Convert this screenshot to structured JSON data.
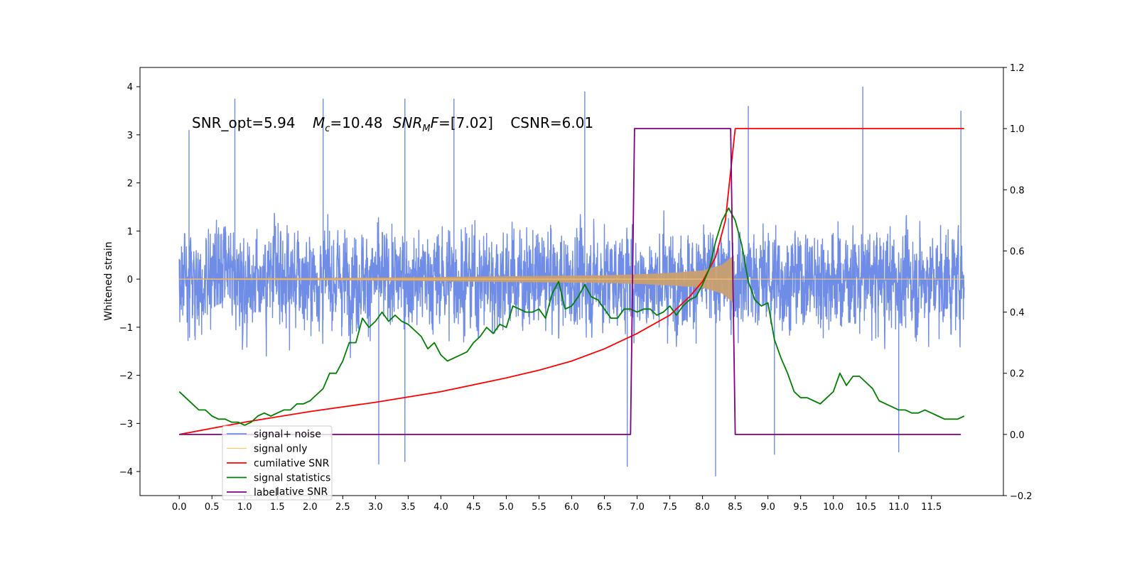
{
  "chart_data": {
    "type": "line",
    "title": "",
    "xlabel": "",
    "ylabel": "Whitened strain",
    "xlim": [
      -0.6,
      12.6
    ],
    "ylim": [
      -4.5,
      4.4
    ],
    "ylim_right": [
      -0.2,
      1.2
    ],
    "xticks": [
      0.0,
      0.5,
      1.0,
      1.5,
      2.0,
      2.5,
      3.0,
      3.5,
      4.0,
      4.5,
      5.0,
      5.5,
      6.0,
      6.5,
      7.0,
      7.5,
      8.0,
      8.5,
      9.0,
      9.5,
      10.0,
      10.5,
      11.0,
      11.5
    ],
    "xtick_labels": [
      "0.0",
      "0.5",
      "1.0",
      "1.5",
      "2.0",
      "2.5",
      "3.0",
      "3.5",
      "4.0",
      "4.5",
      "5.0",
      "5.5",
      "6.0",
      "6.5",
      "7.0",
      "7.5",
      "8.0",
      "8.5",
      "9.0",
      "9.5",
      "10.0",
      "10.5",
      "11.0",
      "11.5"
    ],
    "yticks_left": [
      -4,
      -3,
      -2,
      -1,
      0,
      1,
      2,
      3,
      4
    ],
    "yticks_left_labels": [
      "−4",
      "−3",
      "−2",
      "−1",
      "0",
      "1",
      "2",
      "3",
      "4"
    ],
    "yticks_right": [
      -0.2,
      0.0,
      0.2,
      0.4,
      0.6,
      0.8,
      1.0,
      1.2
    ],
    "yticks_right_labels": [
      "−0.2",
      "0.0",
      "0.2",
      "0.4",
      "0.6",
      "0.8",
      "1.0",
      "1.2"
    ],
    "annotation": {
      "snr_opt": "SNR_opt=5.94",
      "mc_sym": "M",
      "mc_sub": "c",
      "mc_val": "=10.48",
      "snrmf_sym": "SNR",
      "snrmf_sub": "M",
      "snrmf_f": "F",
      "snrmf_val": "=[7.02]",
      "csnr": "CSNR=6.01"
    },
    "legend": {
      "position": "lower-left",
      "entries": [
        {
          "label": "signal+ noise",
          "color": "#6f8ce6"
        },
        {
          "label": "signal only",
          "color": "#ffc86e"
        },
        {
          "label": "cumilative SNR",
          "color": "#ff0000"
        },
        {
          "label": "signal statistics",
          "color": "#008000"
        },
        {
          "label": "label",
          "color": "#800080"
        }
      ],
      "ghost_text": "lative SNR"
    },
    "series": [
      {
        "name": "signal+ noise",
        "axis": "left",
        "color": "#6f8ce6",
        "x_range": [
          0.0,
          12.0
        ],
        "typical_amplitude": 1.9,
        "peak_values": [
          {
            "x": 0.15,
            "y": 3.1
          },
          {
            "x": 0.85,
            "y": 3.75
          },
          {
            "x": 2.2,
            "y": 3.75
          },
          {
            "x": 3.45,
            "y": 3.75
          },
          {
            "x": 4.2,
            "y": 3.75
          },
          {
            "x": 6.2,
            "y": 3.9
          },
          {
            "x": 8.7,
            "y": 3.6
          },
          {
            "x": 10.45,
            "y": 4.0
          },
          {
            "x": 11.95,
            "y": 3.5
          },
          {
            "x": 3.05,
            "y": -3.85
          },
          {
            "x": 3.45,
            "y": -3.8
          },
          {
            "x": 6.85,
            "y": -3.9
          },
          {
            "x": 8.2,
            "y": -4.1
          },
          {
            "x": 9.1,
            "y": -3.65
          },
          {
            "x": 11.0,
            "y": -3.6
          }
        ]
      },
      {
        "name": "signal only",
        "axis": "left",
        "color": "#ffc86e",
        "envelope": [
          {
            "x": 0.0,
            "y": 0.01
          },
          {
            "x": 3.0,
            "y": 0.03
          },
          {
            "x": 5.0,
            "y": 0.06
          },
          {
            "x": 6.5,
            "y": 0.08
          },
          {
            "x": 7.0,
            "y": 0.1
          },
          {
            "x": 7.5,
            "y": 0.13
          },
          {
            "x": 8.0,
            "y": 0.18
          },
          {
            "x": 8.3,
            "y": 0.3
          },
          {
            "x": 8.48,
            "y": 0.5
          },
          {
            "x": 8.5,
            "y": 0.0
          },
          {
            "x": 12.0,
            "y": 0.0
          }
        ]
      },
      {
        "name": "cumilative SNR",
        "axis": "right",
        "color": "#ff0000",
        "x": [
          0.0,
          1.0,
          2.0,
          3.0,
          4.0,
          5.0,
          5.5,
          6.0,
          6.5,
          7.0,
          7.5,
          7.8,
          8.0,
          8.2,
          8.35,
          8.45,
          8.5,
          9.0,
          12.0
        ],
        "y": [
          0.0,
          0.04,
          0.075,
          0.105,
          0.14,
          0.185,
          0.21,
          0.24,
          0.28,
          0.33,
          0.39,
          0.45,
          0.5,
          0.58,
          0.7,
          0.9,
          1.0,
          1.0,
          1.0
        ]
      },
      {
        "name": "signal statistics",
        "axis": "right",
        "color": "#008000",
        "x": [
          0.0,
          0.1,
          0.2,
          0.3,
          0.4,
          0.5,
          0.6,
          0.7,
          0.8,
          0.9,
          1.0,
          1.1,
          1.2,
          1.3,
          1.4,
          1.5,
          1.6,
          1.7,
          1.8,
          1.9,
          2.0,
          2.1,
          2.2,
          2.3,
          2.4,
          2.5,
          2.6,
          2.7,
          2.8,
          2.9,
          3.0,
          3.1,
          3.2,
          3.3,
          3.4,
          3.5,
          3.6,
          3.7,
          3.8,
          3.9,
          4.0,
          4.1,
          4.2,
          4.3,
          4.4,
          4.5,
          4.6,
          4.7,
          4.8,
          4.9,
          5.0,
          5.1,
          5.2,
          5.3,
          5.4,
          5.5,
          5.6,
          5.7,
          5.8,
          5.9,
          6.0,
          6.1,
          6.2,
          6.3,
          6.4,
          6.5,
          6.6,
          6.7,
          6.8,
          6.9,
          7.0,
          7.1,
          7.2,
          7.3,
          7.4,
          7.5,
          7.6,
          7.7,
          7.8,
          7.9,
          8.0,
          8.1,
          8.2,
          8.3,
          8.4,
          8.5,
          8.6,
          8.7,
          8.8,
          8.9,
          9.0,
          9.1,
          9.2,
          9.3,
          9.4,
          9.5,
          9.6,
          9.7,
          9.8,
          9.9,
          10.0,
          10.1,
          10.2,
          10.3,
          10.4,
          10.5,
          10.6,
          10.7,
          10.8,
          10.9,
          11.0,
          11.1,
          11.2,
          11.3,
          11.4,
          11.5,
          11.6,
          11.7,
          11.8,
          11.9,
          12.0
        ],
        "y": [
          0.14,
          0.12,
          0.1,
          0.08,
          0.08,
          0.06,
          0.05,
          0.05,
          0.04,
          0.04,
          0.03,
          0.04,
          0.06,
          0.07,
          0.06,
          0.07,
          0.08,
          0.08,
          0.1,
          0.1,
          0.11,
          0.13,
          0.15,
          0.2,
          0.2,
          0.24,
          0.3,
          0.3,
          0.38,
          0.35,
          0.37,
          0.4,
          0.37,
          0.39,
          0.37,
          0.36,
          0.34,
          0.32,
          0.28,
          0.3,
          0.26,
          0.24,
          0.25,
          0.26,
          0.27,
          0.3,
          0.32,
          0.35,
          0.33,
          0.36,
          0.35,
          0.42,
          0.41,
          0.4,
          0.4,
          0.41,
          0.38,
          0.46,
          0.5,
          0.41,
          0.42,
          0.45,
          0.49,
          0.45,
          0.44,
          0.41,
          0.38,
          0.38,
          0.41,
          0.41,
          0.4,
          0.41,
          0.41,
          0.39,
          0.4,
          0.42,
          0.39,
          0.42,
          0.44,
          0.45,
          0.49,
          0.54,
          0.63,
          0.7,
          0.74,
          0.7,
          0.62,
          0.5,
          0.44,
          0.42,
          0.43,
          0.31,
          0.25,
          0.2,
          0.14,
          0.12,
          0.12,
          0.11,
          0.1,
          0.12,
          0.14,
          0.2,
          0.16,
          0.19,
          0.19,
          0.17,
          0.15,
          0.11,
          0.1,
          0.09,
          0.08,
          0.08,
          0.07,
          0.07,
          0.08,
          0.07,
          0.06,
          0.05,
          0.05,
          0.05,
          0.06
        ]
      },
      {
        "name": "label",
        "axis": "right",
        "color": "#800080",
        "x": [
          0.0,
          6.9,
          6.96,
          8.43,
          8.5,
          11.95
        ],
        "y": [
          0.0,
          0.0,
          1.0,
          1.0,
          0.0,
          0.0
        ]
      }
    ]
  }
}
